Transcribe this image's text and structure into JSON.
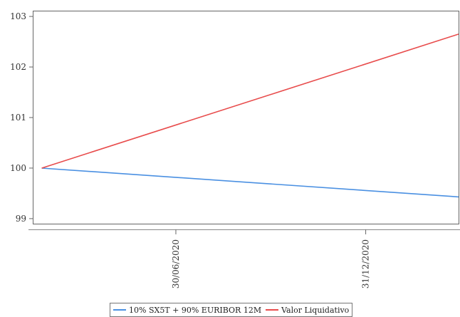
{
  "chart_data": {
    "type": "line",
    "title": "",
    "xlabel": "",
    "ylabel": "",
    "x_range": [
      "2020-02-13",
      "2021-03-31"
    ],
    "ylim": [
      98.9,
      103.1
    ],
    "y_ticks": [
      99,
      100,
      101,
      102,
      103
    ],
    "x_ticks": [
      {
        "date": "2020-06-30",
        "label": "30/06/2020"
      },
      {
        "date": "2020-12-31",
        "label": "31/12/2020"
      }
    ],
    "grid": false,
    "legend_position": "bottom",
    "series": [
      {
        "name": "10% SX5T + 90% EURIBOR 12M",
        "color": "#4a90e2",
        "points": [
          {
            "x": "2020-02-21",
            "y": 100.0
          },
          {
            "x": "2021-03-31",
            "y": 99.43
          }
        ]
      },
      {
        "name": "Valor Liquidativo",
        "color": "#e84c4c",
        "points": [
          {
            "x": "2020-02-21",
            "y": 100.0
          },
          {
            "x": "2021-03-31",
            "y": 102.65
          }
        ]
      }
    ]
  }
}
